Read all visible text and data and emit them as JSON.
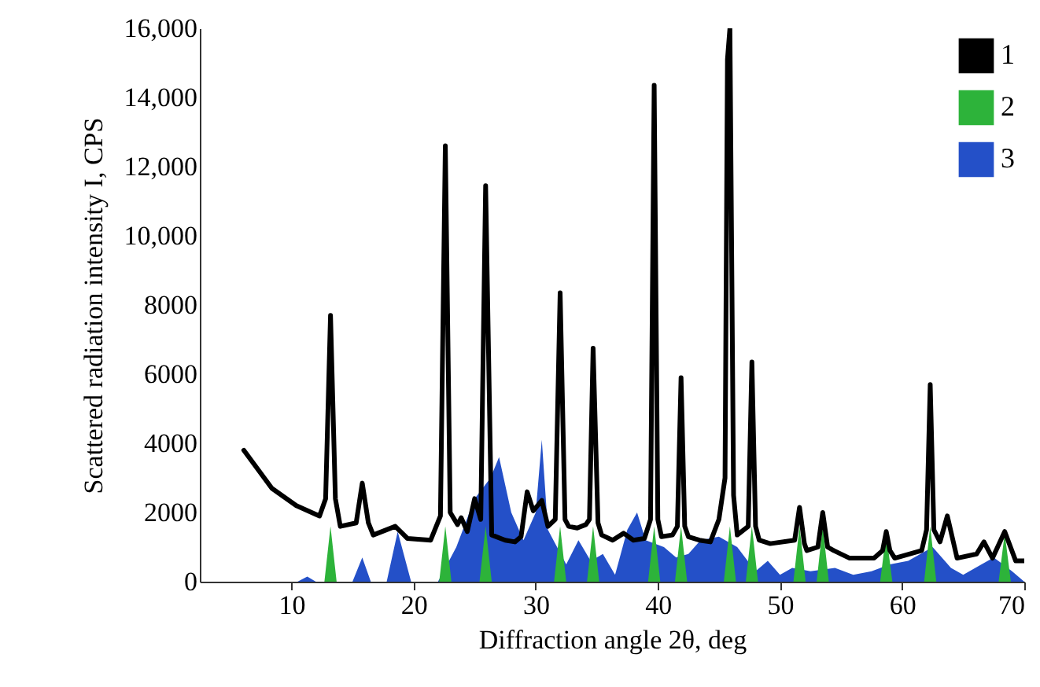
{
  "chart_data": {
    "type": "line",
    "xlabel": "Diffraction angle 2θ, deg",
    "ylabel": "Scattered radiation intensity I, CPS",
    "xlim": [
      2.5,
      70
    ],
    "ylim": [
      0,
      16000
    ],
    "xticks": [
      10,
      20,
      30,
      40,
      50,
      60,
      70
    ],
    "yticks": [
      0,
      2000,
      4000,
      6000,
      8000,
      {
        "value": 10000,
        "label": "10,000"
      },
      {
        "value": 12000,
        "label": "12,000"
      },
      {
        "value": 14000,
        "label": "14,000"
      },
      {
        "value": 16000,
        "label": "16,000"
      }
    ],
    "grid": false,
    "legend": "top right",
    "series": [
      {
        "name": "1",
        "color": "#000000",
        "x": [
          6.1,
          8.4,
          10.4,
          12.3,
          12.8,
          13.2,
          13.6,
          14,
          15.3,
          15.8,
          16.3,
          16.7,
          18.5,
          19.5,
          21.4,
          22.2,
          22.6,
          23,
          23.6,
          23.9,
          24.4,
          25,
          25.5,
          25.9,
          26.4,
          27.5,
          28.3,
          28.8,
          29.3,
          29.8,
          30.5,
          31,
          31.6,
          32,
          32.4,
          32.7,
          33.4,
          34.1,
          34.4,
          34.7,
          35.1,
          35.4,
          36.3,
          37.2,
          38,
          38.9,
          39.4,
          39.7,
          40,
          40.3,
          41.2,
          41.6,
          41.9,
          42.2,
          42.5,
          43.4,
          44.3,
          45,
          45.5,
          45.7,
          45.9,
          46.2,
          46.5,
          47.4,
          47.7,
          48,
          48.3,
          49.2,
          51.2,
          51.6,
          52,
          52.2,
          53.1,
          53.5,
          53.9,
          54.4,
          55.7,
          57.7,
          58.4,
          58.7,
          59,
          59.4,
          61.6,
          62,
          62.3,
          62.6,
          63.1,
          63.7,
          64.5,
          66.1,
          66.7,
          67.4,
          68.4,
          69.3,
          70
        ],
        "values": [
          3800,
          2700,
          2200,
          1900,
          2400,
          7700,
          2400,
          1600,
          1700,
          2850,
          1700,
          1350,
          1600,
          1250,
          1200,
          1900,
          12600,
          2000,
          1650,
          1850,
          1450,
          2400,
          1800,
          11450,
          1350,
          1200,
          1150,
          1300,
          2600,
          2050,
          2350,
          1600,
          1800,
          8350,
          1800,
          1600,
          1550,
          1650,
          1800,
          6750,
          1700,
          1350,
          1200,
          1400,
          1200,
          1250,
          1800,
          14350,
          1800,
          1300,
          1350,
          1600,
          5900,
          1600,
          1300,
          1200,
          1150,
          1800,
          3000,
          15100,
          16000,
          2500,
          1350,
          1600,
          6350,
          1600,
          1200,
          1100,
          1200,
          2150,
          1100,
          900,
          1000,
          2000,
          1000,
          900,
          680,
          680,
          900,
          1450,
          900,
          680,
          900,
          1500,
          5700,
          1500,
          1150,
          1900,
          680,
          800,
          1150,
          680,
          1450,
          600,
          600
        ]
      },
      {
        "name": "2",
        "type": "area",
        "color": "#2db33a",
        "x": [
          12.7,
          13.2,
          13.7,
          22.1,
          22.6,
          23.1,
          25.4,
          25.9,
          26.4,
          31.5,
          32,
          32.5,
          34.2,
          34.7,
          35.2,
          39.2,
          39.7,
          40.2,
          41.4,
          41.9,
          42.4,
          45.4,
          45.9,
          46.4,
          47.2,
          47.7,
          48.2,
          51.1,
          51.6,
          52.1,
          53,
          53.5,
          54,
          58.2,
          58.7,
          59.2,
          61.8,
          62.3,
          62.8,
          67.9,
          68.4,
          68.9
        ],
        "values": [
          0,
          1600,
          0,
          0,
          1600,
          0,
          0,
          1600,
          0,
          0,
          1600,
          0,
          0,
          1600,
          0,
          0,
          1600,
          0,
          0,
          1600,
          0,
          0,
          1600,
          0,
          0,
          1600,
          0,
          0,
          1600,
          0,
          0,
          1600,
          0,
          0,
          1400,
          0,
          0,
          1600,
          0,
          0,
          1400,
          0
        ]
      },
      {
        "name": "3",
        "type": "area",
        "color": "#2450c8",
        "x": [
          10.5,
          11.3,
          12,
          12.5,
          15,
          15.8,
          16.5,
          17.8,
          18.7,
          19.8,
          21,
          22,
          23.5,
          25,
          26.3,
          27,
          28,
          29,
          30,
          30.5,
          31,
          32.5,
          33.5,
          34.5,
          35.5,
          36.5,
          37.5,
          38.3,
          39,
          40.5,
          41.5,
          42.5,
          43.5,
          45,
          46.5,
          48,
          49,
          50,
          51,
          52.5,
          54.5,
          56,
          57.5,
          59,
          60.5,
          61.5,
          62.5,
          64,
          65,
          66.5,
          67.5,
          69,
          70
        ],
        "values": [
          0,
          150,
          0,
          0,
          0,
          700,
          0,
          0,
          1450,
          0,
          0,
          0,
          1000,
          2400,
          3000,
          3600,
          2000,
          1200,
          2000,
          4100,
          1500,
          500,
          1200,
          600,
          800,
          200,
          1500,
          2000,
          1200,
          1000,
          700,
          800,
          1200,
          1300,
          1000,
          300,
          600,
          200,
          400,
          300,
          400,
          200,
          300,
          500,
          600,
          800,
          1000,
          400,
          200,
          500,
          700,
          300,
          0
        ]
      }
    ]
  }
}
